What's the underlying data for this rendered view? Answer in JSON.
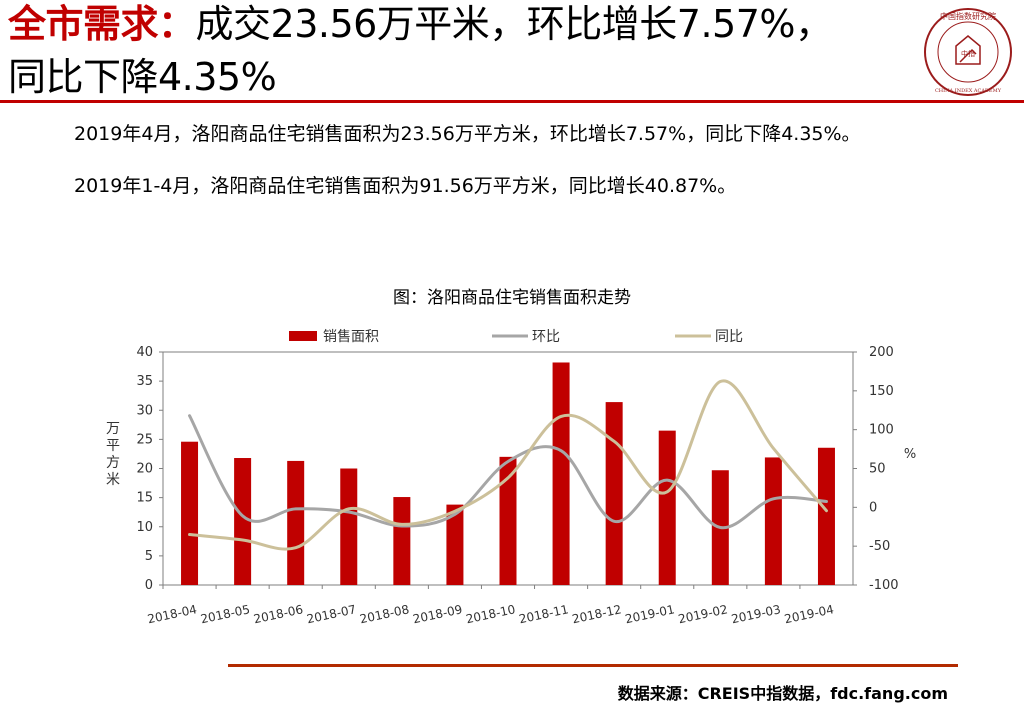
{
  "header": {
    "title_prefix": "全市需求：",
    "title_rest_line1": "成交23.56万平米，环比增长7.57%，",
    "title_line2": "同比下降4.35%",
    "accent_color": "#c00000"
  },
  "logo": {
    "text_top": "中国指数研究院",
    "text_center": "中指",
    "text_bottom": "CHINA INDEX ACADEMY"
  },
  "body": {
    "para1": "2019年4月，洛阳商品住宅销售面积为23.56万平方米，环比增长7.57%，同比下降4.35%。",
    "para2": "2019年1-4月，洛阳商品住宅销售面积为91.56万平方米，同比增长40.87%。"
  },
  "footer": {
    "source": "数据来源：CREIS中指数据，fdc.fang.com"
  },
  "chart_data": {
    "type": "bar+line",
    "title": "图：洛阳商品住宅销售面积走势",
    "categories": [
      "2018-04",
      "2018-05",
      "2018-06",
      "2018-07",
      "2018-08",
      "2018-09",
      "2018-10",
      "2018-11",
      "2018-12",
      "2019-01",
      "2019-02",
      "2019-03",
      "2019-04"
    ],
    "y_left": {
      "label": "万平方米",
      "min": 0,
      "max": 40,
      "ticks": [
        0,
        5,
        10,
        15,
        20,
        25,
        30,
        35,
        40
      ]
    },
    "y_right": {
      "label": "%",
      "min": -100,
      "max": 200,
      "ticks": [
        -100,
        -50,
        0,
        50,
        100,
        150,
        200
      ]
    },
    "legend_position": "top",
    "series": [
      {
        "name": "销售面积",
        "type": "bar",
        "axis": "left",
        "color": "#c00000",
        "values": [
          24.6,
          21.8,
          21.3,
          20.0,
          15.1,
          13.8,
          22.0,
          38.2,
          31.4,
          26.5,
          19.7,
          21.9,
          23.56
        ]
      },
      {
        "name": "环比",
        "type": "line",
        "axis": "right",
        "color": "#a6a6a6",
        "values": [
          118,
          -11,
          -2,
          -6,
          -24,
          -9,
          59,
          73,
          -18,
          35,
          -26,
          11,
          7.57
        ]
      },
      {
        "name": "同比",
        "type": "line",
        "axis": "right",
        "color": "#ccc09a",
        "values": [
          -35,
          -42,
          -52,
          -2,
          -22,
          -5,
          38,
          117,
          85,
          20,
          162,
          76,
          -4.35
        ]
      }
    ]
  }
}
